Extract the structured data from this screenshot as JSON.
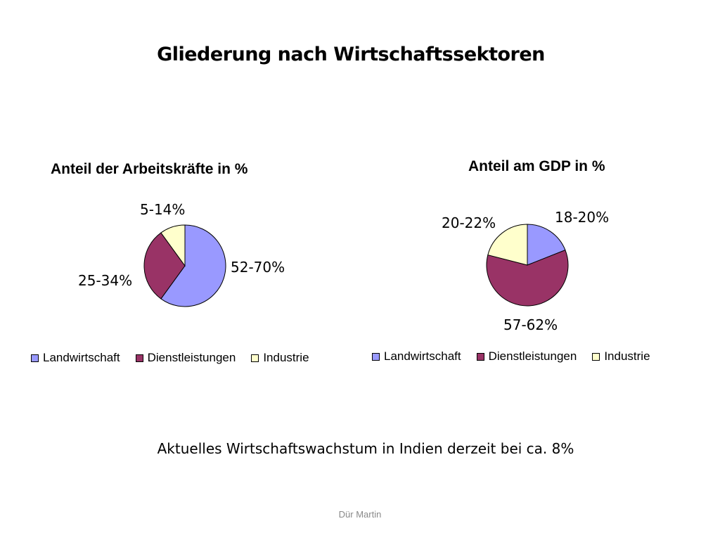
{
  "slide": {
    "title": "Gliederung nach Wirtschaftssektoren",
    "footnote": "Aktuelles Wirtschaftswachstum in Indien derzeit bei ca. 8%",
    "footer": "Dür Martin"
  },
  "colors": {
    "Landwirtschaft": "#9999ff",
    "Dienstleistungen": "#993366",
    "Industrie": "#ffffcc"
  },
  "chart_data": [
    {
      "type": "pie",
      "title": "Anteil der Arbeitskräfte in %",
      "categories": [
        "Landwirtschaft",
        "Dienstleistungen",
        "Industrie"
      ],
      "values": [
        60,
        30,
        10
      ],
      "labels": [
        "52-70%",
        "25-34%",
        "5-14%"
      ],
      "start": "12 o'clock",
      "direction": "clockwise",
      "legend_position": "bottom"
    },
    {
      "type": "pie",
      "title": "Anteil am GDP in %",
      "categories": [
        "Landwirtschaft",
        "Dienstleistungen",
        "Industrie"
      ],
      "values": [
        19,
        60,
        21
      ],
      "labels": [
        "18-20%",
        "57-62%",
        "20-22%"
      ],
      "start": "12 o'clock",
      "direction": "clockwise",
      "legend_position": "bottom"
    }
  ]
}
